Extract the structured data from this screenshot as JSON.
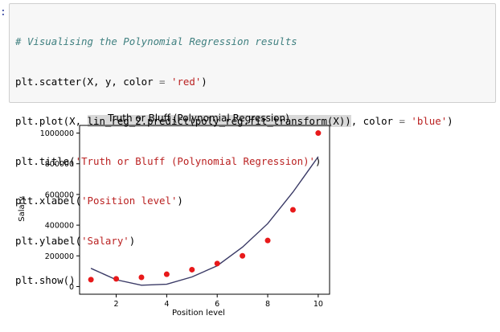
{
  "cell": {
    "prompt": ":",
    "code": {
      "line1": {
        "comment": "# Visualising the Polynomial Regression results"
      },
      "line2": {
        "a": "plt.scatter(X, y, color ",
        "op": "=",
        "b": " ",
        "str": "'red'",
        "c": ")"
      },
      "line3": {
        "a": "plt.plot(X, ",
        "hl": "lin_reg_2.predict(poly_reg.fit_transform(X))",
        "b": ", color ",
        "op": "=",
        "c": " ",
        "str": "'blue'",
        "d": ")"
      },
      "line4": {
        "a": "plt.title(",
        "str": "'Truth or Bluff (Polynomial Regression)'",
        "b": ")"
      },
      "line5": {
        "a": "plt.xlabel(",
        "str": "'Position level'",
        "b": ")"
      },
      "line6": {
        "a": "plt.ylabel(",
        "str": "'Salary'",
        "b": ")"
      },
      "line7": {
        "a": "plt.show()"
      }
    }
  },
  "chart_data": {
    "type": "scatter",
    "title": "Truth or Bluff (Polynomial Regression)",
    "xlabel": "Position level",
    "ylabel": "Salary",
    "xlim": [
      0.55,
      10.45
    ],
    "ylim": [
      -50000,
      1050000
    ],
    "xticks": [
      2,
      4,
      6,
      8,
      10
    ],
    "yticks": [
      0,
      200000,
      400000,
      600000,
      800000,
      1000000
    ],
    "grid": false,
    "series": [
      {
        "kind": "scatter",
        "color": "#e8191a",
        "x": [
          1,
          2,
          3,
          4,
          5,
          6,
          7,
          8,
          9,
          10
        ],
        "y": [
          45000,
          50000,
          60000,
          80000,
          110000,
          150000,
          200000,
          300000,
          500000,
          1000000
        ]
      },
      {
        "kind": "line",
        "color": "#3a3a66",
        "x": [
          1,
          2,
          3,
          4,
          5,
          6,
          7,
          8,
          9,
          10
        ],
        "y": [
          118727,
          44151,
          8439,
          14757,
          62727,
          135242,
          256576,
          409700,
          615000,
          846000
        ]
      }
    ]
  }
}
